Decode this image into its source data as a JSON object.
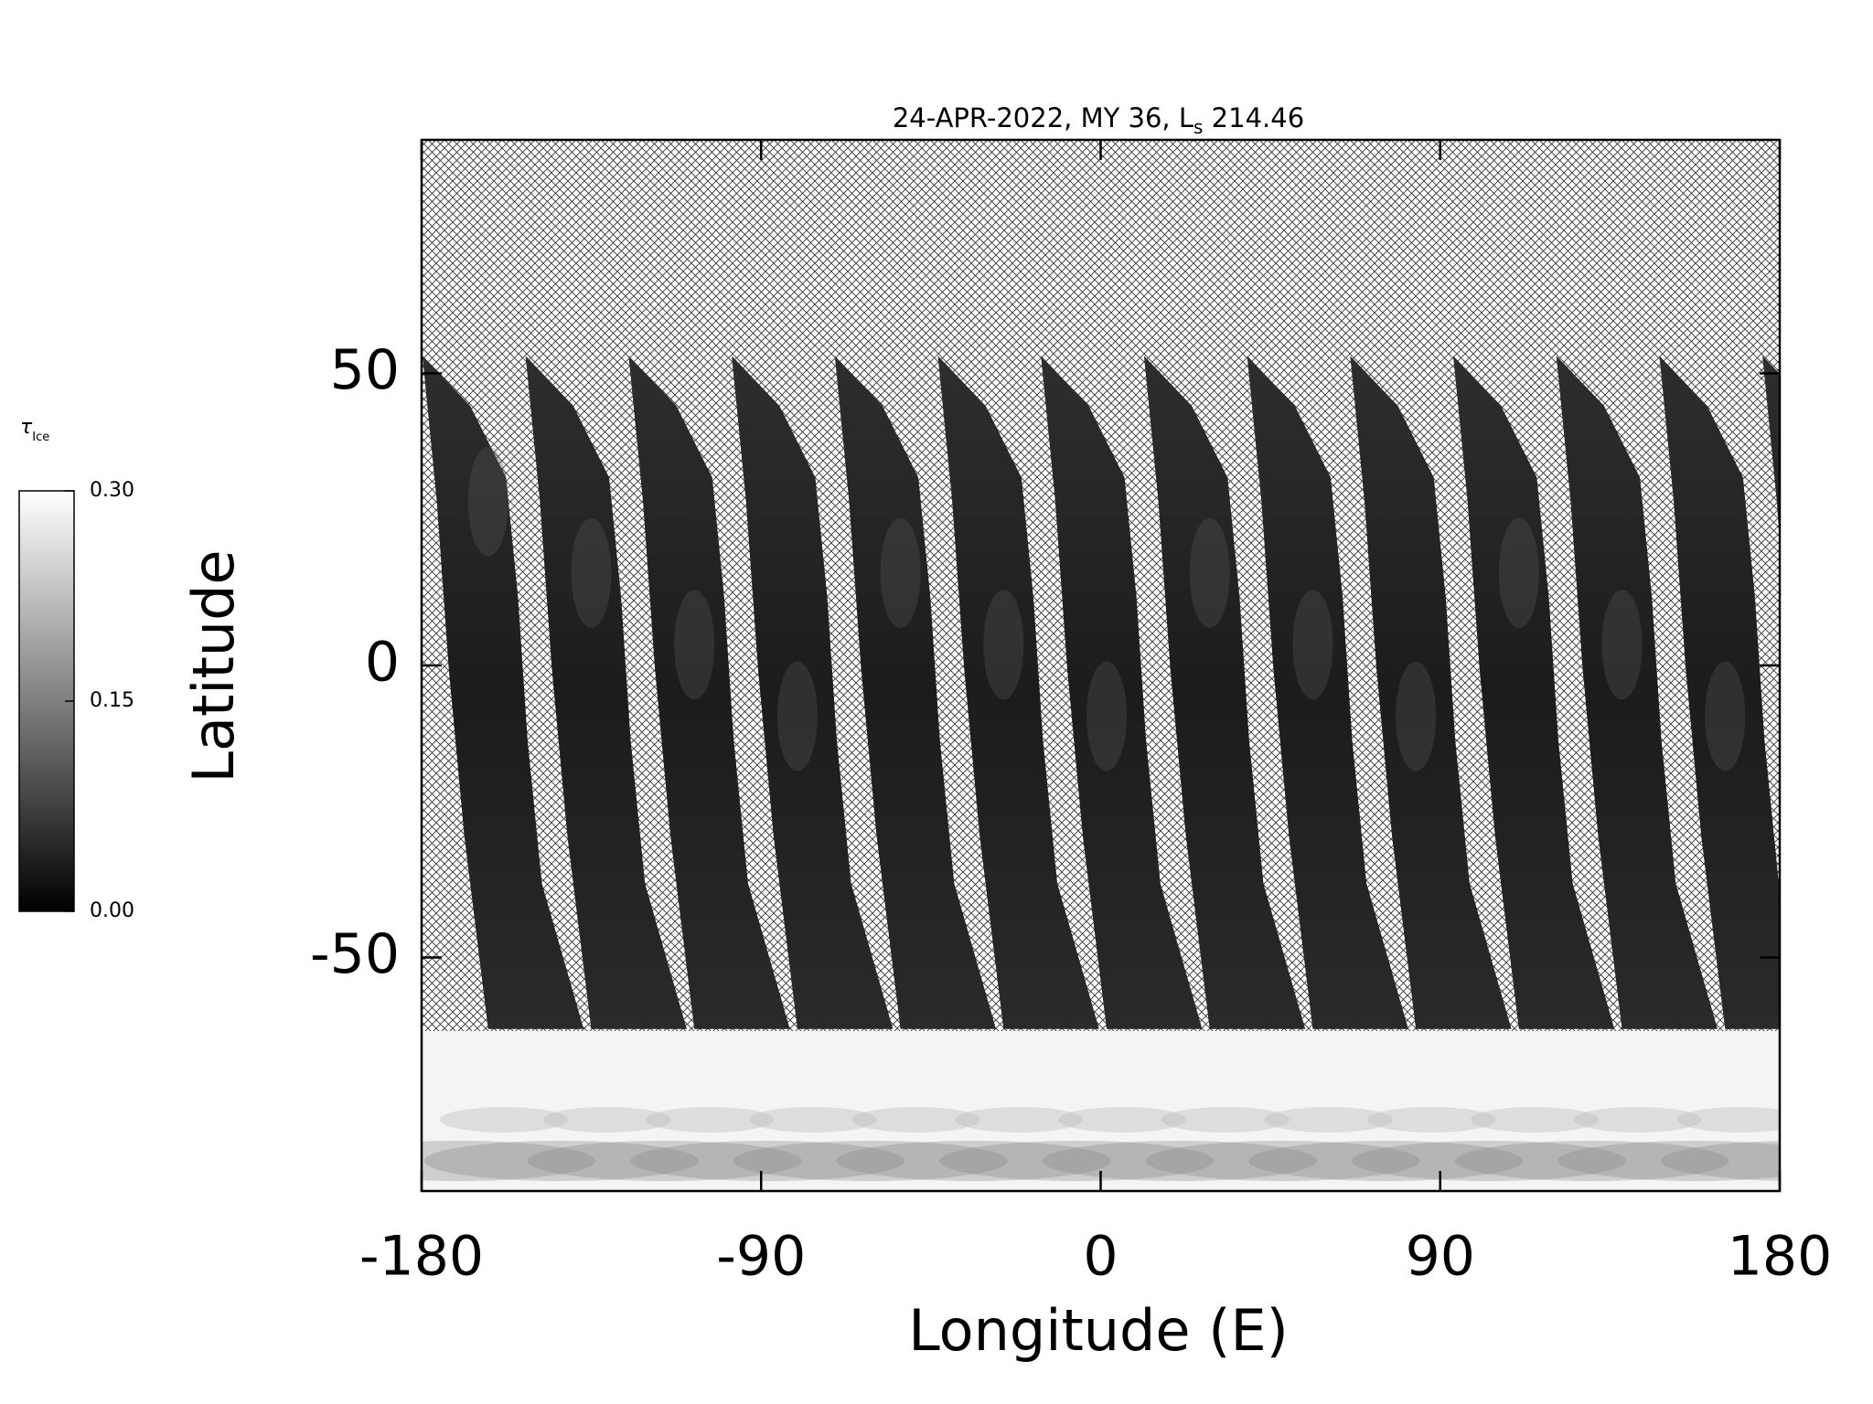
{
  "chart_data": {
    "type": "map",
    "title": [
      "24-APR-2022, MY 36,  L",
      "s",
      " 214.46"
    ],
    "x_label": "Longitude (E)",
    "y_label": "Latitude",
    "xlim": [
      -180,
      180
    ],
    "xticks": [
      -180,
      -90,
      0,
      90,
      180
    ],
    "ylim": [
      -90,
      90
    ],
    "yticks": [
      -50,
      0,
      50
    ],
    "colorbar": {
      "label": [
        "τ",
        "Ice"
      ],
      "lim": [
        0,
        0.3
      ],
      "ticks": [
        {
          "value": 0,
          "label": "0.00"
        },
        {
          "value": 0.15,
          "label": "0.15"
        },
        {
          "value": 0.3,
          "label": "0.30"
        }
      ]
    }
  }
}
